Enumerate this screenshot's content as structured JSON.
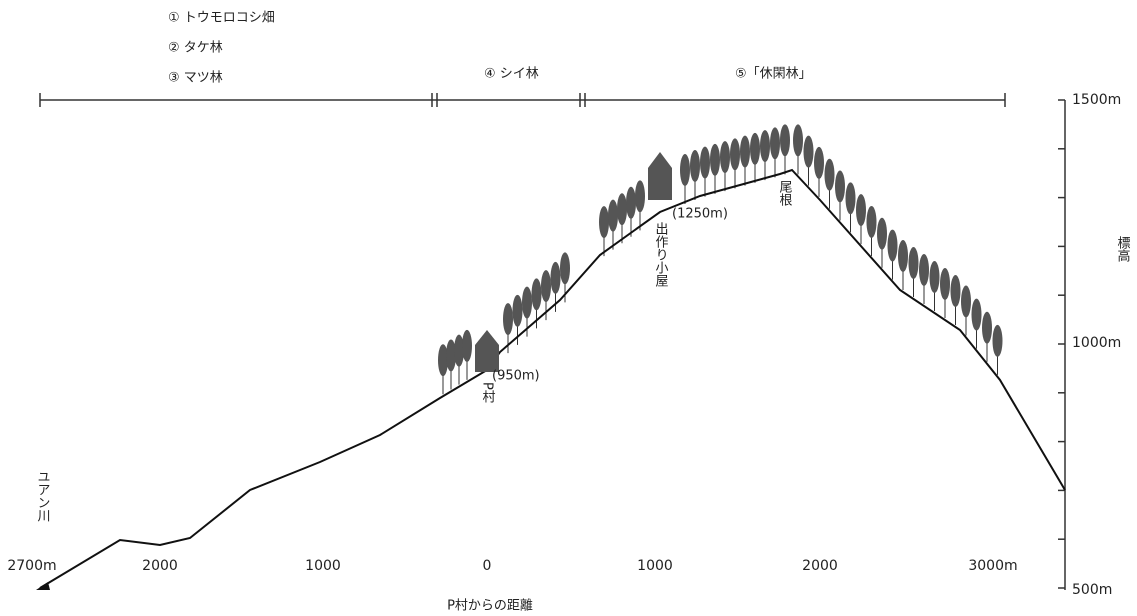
{
  "zones": [
    "① トウモロコシ畑",
    "② タケ林",
    "③ マツ林",
    "④ シイ林",
    "⑤「休閑林」"
  ],
  "elevation_axis": {
    "title": "標高",
    "labels": [
      "1500m",
      "1000m",
      "500m"
    ]
  },
  "distance_axis": {
    "title": "P村からの距離",
    "labels": [
      "2700m",
      "2000",
      "1000",
      "0",
      "1000",
      "2000",
      "3000m"
    ]
  },
  "annotations": {
    "village_elevation": "(950m)",
    "village": "P村",
    "hut_elevation": "(1250m)",
    "hut": "出作り小屋",
    "ridge": "尾根",
    "river": "ユアン川"
  }
}
